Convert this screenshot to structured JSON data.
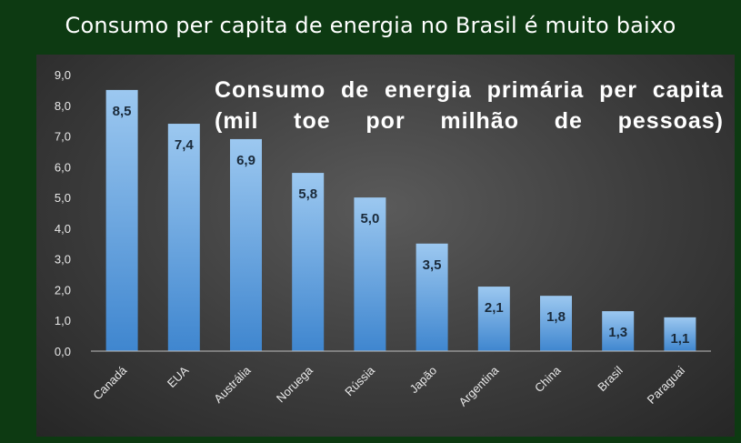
{
  "slide": {
    "title": "Consumo per capita de energia no Brasil é muito baixo"
  },
  "colors": {
    "background": "#0d3a12",
    "bar_top": "#9cc8f0",
    "bar_bottom": "#3f86cf"
  },
  "chart_data": {
    "type": "bar",
    "title": "Consumo de energia primária per capita (mil toe por milhão de pessoas)",
    "categories": [
      "Canadá",
      "EUA",
      "Austrália",
      "Noruega",
      "Rússia",
      "Japão",
      "Argentina",
      "China",
      "Brasil",
      "Paraguai"
    ],
    "values": [
      8.5,
      7.4,
      6.9,
      5.8,
      5.0,
      3.5,
      2.1,
      1.8,
      1.3,
      1.1
    ],
    "value_labels": [
      "8,5",
      "7,4",
      "6,9",
      "5,8",
      "5,0",
      "3,5",
      "2,1",
      "1,8",
      "1,3",
      "1,1"
    ],
    "yticks": [
      "0,0",
      "1,0",
      "2,0",
      "3,0",
      "4,0",
      "5,0",
      "6,0",
      "7,0",
      "8,0",
      "9,0"
    ],
    "ylim": [
      0,
      9
    ],
    "xlabel": "",
    "ylabel": "",
    "grid": false,
    "legend": "none"
  }
}
